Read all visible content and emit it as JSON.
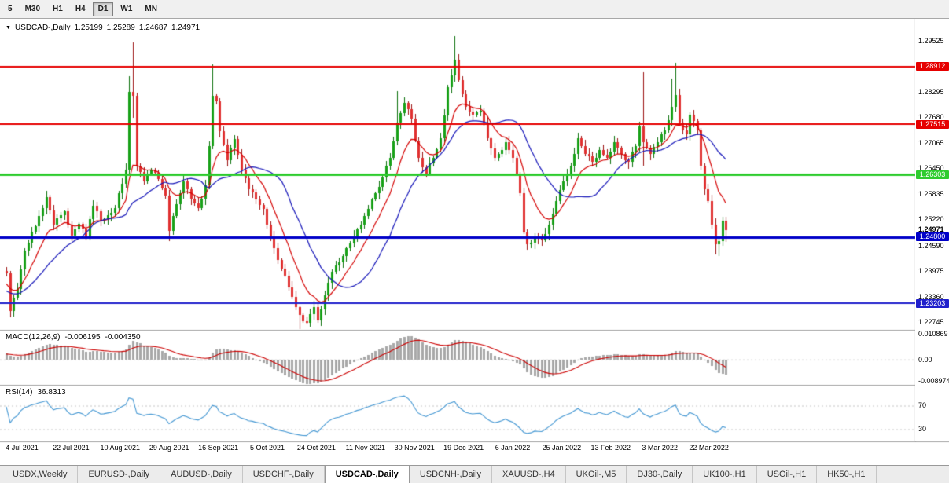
{
  "toolbar": {
    "timeframes": [
      "5",
      "M30",
      "H1",
      "H4",
      "D1",
      "W1",
      "MN"
    ],
    "active": "D1"
  },
  "chart": {
    "arrow": "▼",
    "symbol": "USDCAD-,Daily",
    "open": "1.25199",
    "high": "1.25289",
    "low": "1.24687",
    "close": "1.24971"
  },
  "indicators": {
    "macd": {
      "label": "MACD(12,26,9)",
      "main_value": "-0.006195",
      "signal_value": "-0.004350",
      "axis_max": "0.010869",
      "axis_zero": "0.00",
      "axis_min": "-0.008974"
    },
    "rsi": {
      "label": "RSI(14)",
      "value": "36.8313",
      "level_high": "70",
      "level_low": "30"
    }
  },
  "tabs": {
    "active_index": 4,
    "items": [
      "USDX,Weekly",
      "EURUSD-,Daily",
      "AUDUSD-,Daily",
      "USDCHF-,Daily",
      "USDCAD-,Daily",
      "USDCNH-,Daily",
      "XAUUSD-,H4",
      "UKOil-,M5",
      "DJ30-,Daily",
      "UK100-,H1",
      "USOil-,H1",
      "HK50-,H1"
    ]
  },
  "chart_data": {
    "type": "candlestick",
    "symbol": "USDCAD",
    "period": "Daily",
    "current_ohlc": {
      "open": 1.25199,
      "high": 1.25289,
      "low": 1.24687,
      "close": 1.24971
    },
    "price_axis_ticks": [
      "1.29525",
      "1.28295",
      "1.27680",
      "1.27065",
      "1.26450",
      "1.25835",
      "1.25220",
      "1.24590",
      "1.23975",
      "1.23360",
      "1.22745"
    ],
    "current_price_label": {
      "price": 1.24971,
      "label": "1.24971"
    },
    "horizontal_levels": [
      {
        "price": 1.28912,
        "label": "1.28912",
        "color": "#e60000",
        "width": 2
      },
      {
        "price": 1.27515,
        "label": "1.27515",
        "color": "#e60000",
        "width": 2
      },
      {
        "price": 1.26303,
        "label": "1.26303",
        "color": "#2ecc2e",
        "width": 3
      },
      {
        "price": 1.248,
        "label": "1.24800",
        "color": "#0000c8",
        "width": 3
      },
      {
        "price": 1.23203,
        "label": "1.23203",
        "color": "#2020cc",
        "width": 2
      }
    ],
    "date_labels": [
      "4 Jul 2021",
      "22 Jul 2021",
      "10 Aug 2021",
      "29 Aug 2021",
      "16 Sep 2021",
      "5 Oct 2021",
      "24 Oct 2021",
      "11 Nov 2021",
      "30 Nov 2021",
      "19 Dec 2021",
      "6 Jan 2022",
      "25 Jan 2022",
      "13 Feb 2022",
      "3 Mar 2022",
      "22 Mar 2022"
    ],
    "moving_averages": [
      {
        "type": "ema",
        "period": 10,
        "color": "#d40000",
        "width": 1.2
      },
      {
        "type": "sma",
        "period": 21,
        "color": "#1414b8",
        "width": 1.2
      }
    ],
    "macd_params": [
      12,
      26,
      9
    ],
    "macd_axis_range": {
      "max": 0.010869,
      "min": -0.008974
    },
    "rsi_period": 14,
    "rsi_levels": [
      70,
      30
    ],
    "colors": {
      "candle_up": "#18a118",
      "candle_up_wick": "#0c700c",
      "candle_down": "#e03030",
      "candle_down_wick": "#9c1414",
      "macd_hist": "#a8a8a8",
      "macd_signal": "#cc0000",
      "rsi_line": "#4296d2",
      "level_dash": "#c4c4c4",
      "grid": "#a0a0a0"
    },
    "warmup_anchors": [
      [
        -50,
        1.218
      ],
      [
        -42,
        1.214
      ],
      [
        -34,
        1.219
      ],
      [
        -27,
        1.229
      ],
      [
        -23,
        1.247
      ],
      [
        -20,
        1.24
      ],
      [
        -16,
        1.232
      ],
      [
        -10,
        1.233
      ],
      [
        -5,
        1.2345
      ],
      [
        -1,
        1.2398
      ]
    ],
    "price_anchors": [
      [
        0,
        1.2392,
        null,
        null
      ],
      [
        1,
        1.2302,
        null,
        1.2286
      ],
      [
        3,
        1.2355,
        null,
        null
      ],
      [
        5,
        1.2448,
        null,
        null
      ],
      [
        9,
        1.253,
        null,
        null
      ],
      [
        11,
        1.2576,
        1.2592,
        null
      ],
      [
        13,
        1.251,
        null,
        null
      ],
      [
        16,
        1.2542,
        null,
        null
      ],
      [
        18,
        1.2484,
        null,
        null
      ],
      [
        20,
        1.2512,
        null,
        null
      ],
      [
        22,
        1.248,
        null,
        null
      ],
      [
        24,
        1.2556,
        null,
        null
      ],
      [
        26,
        1.252,
        null,
        null
      ],
      [
        28,
        1.2532,
        null,
        null
      ],
      [
        30,
        1.255,
        null,
        null
      ],
      [
        31,
        1.2585,
        null,
        null
      ],
      [
        33,
        1.2642,
        null,
        null
      ],
      [
        34,
        1.283,
        1.2868,
        null
      ],
      [
        35,
        1.282,
        1.2949,
        1.2768
      ],
      [
        36,
        1.265,
        null,
        null
      ],
      [
        38,
        1.2615,
        null,
        null
      ],
      [
        40,
        1.2642,
        null,
        null
      ],
      [
        42,
        1.262,
        null,
        null
      ],
      [
        44,
        1.258,
        null,
        null
      ],
      [
        45,
        1.2495,
        null,
        1.247
      ],
      [
        47,
        1.256,
        null,
        null
      ],
      [
        49,
        1.2614,
        null,
        null
      ],
      [
        51,
        1.2572,
        null,
        null
      ],
      [
        53,
        1.255,
        null,
        null
      ],
      [
        55,
        1.2605,
        null,
        null
      ],
      [
        56,
        1.27,
        null,
        null
      ],
      [
        57,
        1.282,
        1.2896,
        null
      ],
      [
        58,
        1.2808,
        null,
        null
      ],
      [
        59,
        1.2735,
        null,
        null
      ],
      [
        61,
        1.2665,
        null,
        null
      ],
      [
        63,
        1.2716,
        null,
        null
      ],
      [
        65,
        1.2642,
        null,
        null
      ],
      [
        67,
        1.2596,
        null,
        null
      ],
      [
        69,
        1.257,
        null,
        null
      ],
      [
        71,
        1.2548,
        null,
        null
      ],
      [
        73,
        1.2482,
        null,
        null
      ],
      [
        75,
        1.2425,
        null,
        null
      ],
      [
        77,
        1.2387,
        null,
        null
      ],
      [
        79,
        1.2336,
        null,
        null
      ],
      [
        81,
        1.2292,
        null,
        1.2252
      ],
      [
        83,
        1.2274,
        null,
        null
      ],
      [
        85,
        1.2311,
        null,
        null
      ],
      [
        86,
        1.228,
        null,
        null
      ],
      [
        88,
        1.234,
        null,
        null
      ],
      [
        90,
        1.2396,
        null,
        null
      ],
      [
        92,
        1.2419,
        null,
        null
      ],
      [
        94,
        1.2453,
        null,
        null
      ],
      [
        96,
        1.2482,
        null,
        null
      ],
      [
        98,
        1.251,
        null,
        null
      ],
      [
        100,
        1.2548,
        null,
        null
      ],
      [
        102,
        1.2586,
        null,
        null
      ],
      [
        104,
        1.2624,
        null,
        null
      ],
      [
        106,
        1.2671,
        null,
        null
      ],
      [
        108,
        1.2756,
        1.2832,
        null
      ],
      [
        110,
        1.2803,
        null,
        null
      ],
      [
        112,
        1.2765,
        null,
        null
      ],
      [
        114,
        1.2671,
        null,
        null
      ],
      [
        116,
        1.2633,
        null,
        null
      ],
      [
        118,
        1.2671,
        null,
        null
      ],
      [
        120,
        1.2718,
        null,
        null
      ],
      [
        122,
        1.2841,
        null,
        null
      ],
      [
        124,
        1.2907,
        1.2964,
        null
      ],
      [
        125,
        1.2858,
        null,
        null
      ],
      [
        127,
        1.2794,
        null,
        null
      ],
      [
        129,
        1.2775,
        null,
        null
      ],
      [
        131,
        1.2784,
        null,
        null
      ],
      [
        133,
        1.2718,
        null,
        null
      ],
      [
        135,
        1.2671,
        null,
        null
      ],
      [
        137,
        1.269,
        null,
        null
      ],
      [
        138,
        1.2709,
        null,
        null
      ],
      [
        140,
        1.2671,
        null,
        null
      ],
      [
        142,
        1.2586,
        null,
        null
      ],
      [
        143,
        1.2491,
        null,
        null
      ],
      [
        144,
        1.2463,
        null,
        1.245
      ],
      [
        146,
        1.2482,
        null,
        null
      ],
      [
        148,
        1.2472,
        null,
        null
      ],
      [
        150,
        1.251,
        null,
        null
      ],
      [
        152,
        1.2567,
        null,
        null
      ],
      [
        154,
        1.2614,
        null,
        null
      ],
      [
        156,
        1.2652,
        null,
        null
      ],
      [
        158,
        1.2718,
        null,
        null
      ],
      [
        160,
        1.268,
        null,
        null
      ],
      [
        162,
        1.2661,
        null,
        null
      ],
      [
        164,
        1.269,
        null,
        null
      ],
      [
        166,
        1.2671,
        null,
        null
      ],
      [
        168,
        1.2709,
        null,
        null
      ],
      [
        170,
        1.268,
        null,
        null
      ],
      [
        172,
        1.2661,
        null,
        null
      ],
      [
        174,
        1.27,
        null,
        null
      ],
      [
        175,
        1.2746,
        null,
        null
      ],
      [
        176,
        1.2709,
        1.2877,
        1.2652
      ],
      [
        178,
        1.268,
        null,
        null
      ],
      [
        180,
        1.2709,
        null,
        null
      ],
      [
        182,
        1.2737,
        null,
        null
      ],
      [
        184,
        1.2794,
        1.2862,
        null
      ],
      [
        185,
        1.2822,
        1.2899,
        null
      ],
      [
        186,
        1.2756,
        null,
        null
      ],
      [
        188,
        1.2728,
        null,
        null
      ],
      [
        189,
        1.2775,
        null,
        null
      ],
      [
        191,
        1.2737,
        null,
        null
      ],
      [
        192,
        1.2652,
        null,
        null
      ],
      [
        193,
        1.2596,
        null,
        null
      ],
      [
        194,
        1.2567,
        null,
        null
      ],
      [
        195,
        1.251,
        null,
        null
      ],
      [
        196,
        1.2462,
        null,
        1.2438
      ],
      [
        197,
        1.247,
        null,
        1.2435
      ],
      [
        198,
        1.25199,
        1.2529,
        null
      ],
      [
        199,
        1.24971,
        1.25289,
        1.24687
      ]
    ]
  }
}
